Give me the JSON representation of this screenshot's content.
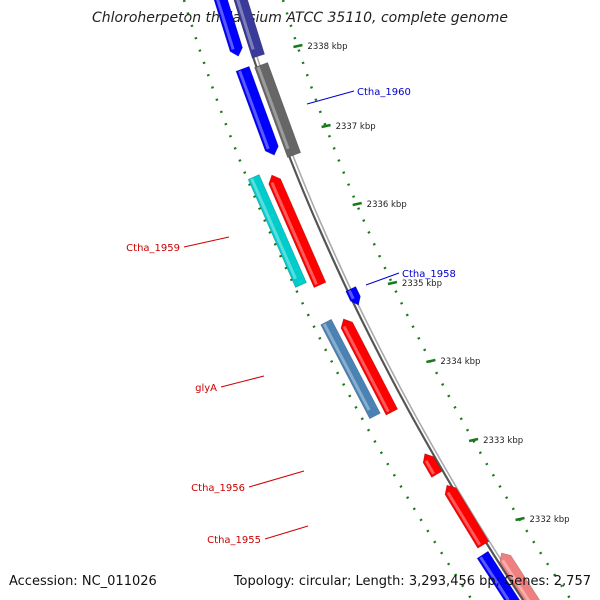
{
  "title": "Chloroherpeton thalassium ATCC 35110, complete genome",
  "footer": {
    "accession_label": "Accession:",
    "accession": "NC_011026",
    "topology_label": "Topology:",
    "topology": "circular",
    "length_label": "Length:",
    "length": "3,293,456 bp",
    "genes_label": "Genes:",
    "genes": "2,757"
  },
  "colors": {
    "red": "#ff0000",
    "blue": "#0000ff",
    "navy": "#3a3a9a",
    "gray": "#666666",
    "cyan": "#00cccc",
    "steel": "#4a82b4",
    "pink": "#f08080",
    "green": "#1a7a1a",
    "label_red": "#cc0000",
    "label_blue": "#0000cc"
  },
  "ticks": [
    "2338 kbp",
    "2337 kbp",
    "2336 kbp",
    "2335 kbp",
    "2334 kbp",
    "2333 kbp",
    "2332 kbp"
  ],
  "gene_labels": [
    {
      "name": "Ctha_1960",
      "color": "label_blue"
    },
    {
      "name": "Ctha_1959",
      "color": "label_red"
    },
    {
      "name": "Ctha_1958",
      "color": "label_blue"
    },
    {
      "name": "glyA",
      "color": "label_red"
    },
    {
      "name": "Ctha_1956",
      "color": "label_red"
    },
    {
      "name": "Ctha_1955",
      "color": "label_red"
    }
  ]
}
